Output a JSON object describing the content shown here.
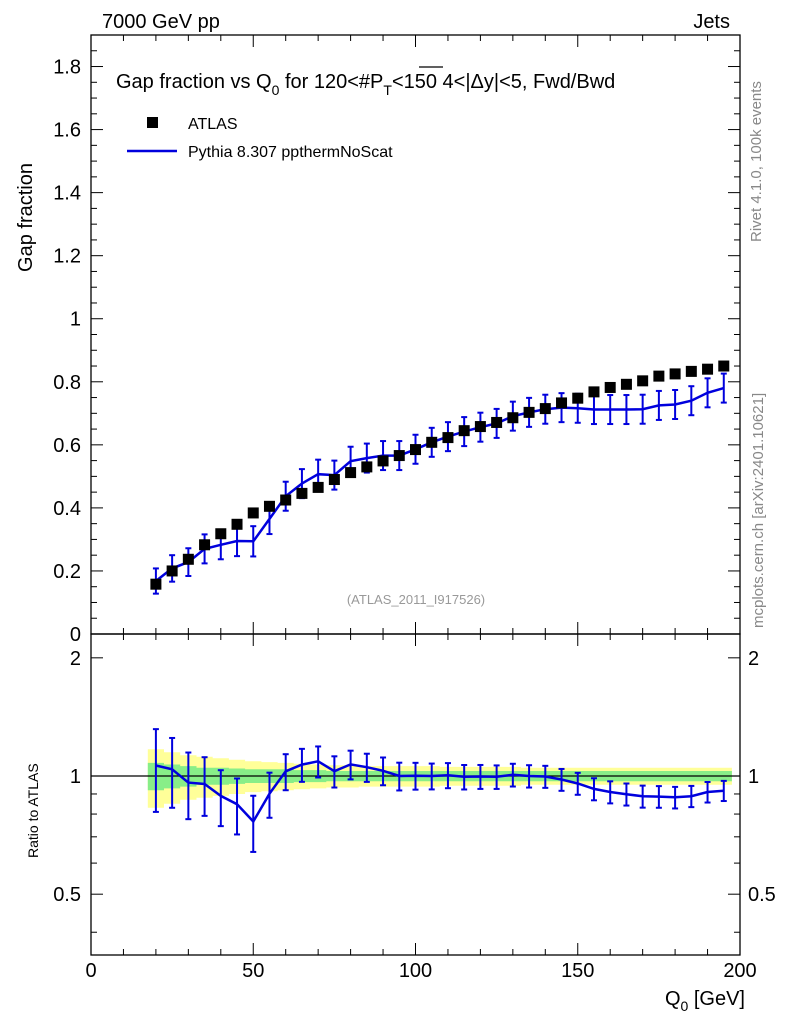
{
  "header": {
    "energy": "7000 GeV pp",
    "category": "Jets"
  },
  "side_text": {
    "rivet": "Rivet 4.1.0,  100k events",
    "mcplots": "mcplots.cern.ch [arXiv:2401.10621]"
  },
  "chart_data": {
    "type": "scatter",
    "title": "Gap fraction vs Q0 for 120<#PT<150  4<|Δy|<5, Fwd/Bwd",
    "title_parts": {
      "pre": "Gap fraction vs Q",
      "sub0": "0",
      "mid": " for 120<#",
      "p": "P",
      "subT": "T",
      "post": "<150  4<|Δy|<5, Fwd/Bwd"
    },
    "analysis_tag": "(ATLAS_2011_I917526)",
    "xlabel": "Q0 [GeV]",
    "xlabel_parts": {
      "main": "Q",
      "sub": "0",
      "unit": " [GeV]"
    },
    "ylabel": "Gap fraction",
    "ratio_ylabel": "Ratio to ATLAS",
    "xlim": [
      0,
      200
    ],
    "ylim": [
      0,
      1.9
    ],
    "ratio_ylim": [
      0.35,
      2.3
    ],
    "x_ticks": [
      "0",
      "50",
      "100",
      "150",
      "200"
    ],
    "y_ticks": [
      "0",
      "0.2",
      "0.4",
      "0.6",
      "0.8",
      "1",
      "1.2",
      "1.4",
      "1.6",
      "1.8"
    ],
    "ratio_ticks": [
      "0.5",
      "1",
      "2"
    ],
    "legend": [
      {
        "name": "ATLAS",
        "kind": "marker",
        "color": "#000000"
      },
      {
        "name": "Pythia 8.307 ppthermNoScat",
        "kind": "line",
        "color": "#0000dd"
      }
    ],
    "x": [
      20,
      25,
      30,
      35,
      40,
      45,
      50,
      55,
      60,
      65,
      70,
      75,
      80,
      85,
      90,
      95,
      100,
      105,
      110,
      115,
      120,
      125,
      130,
      135,
      140,
      145,
      150,
      155,
      160,
      165,
      170,
      175,
      180,
      185,
      190,
      195
    ],
    "series": [
      {
        "name": "ATLAS",
        "values": [
          0.158,
          0.2,
          0.237,
          0.283,
          0.318,
          0.348,
          0.384,
          0.405,
          0.425,
          0.446,
          0.465,
          0.49,
          0.512,
          0.53,
          0.549,
          0.566,
          0.585,
          0.608,
          0.623,
          0.645,
          0.658,
          0.671,
          0.686,
          0.703,
          0.715,
          0.733,
          0.748,
          0.768,
          0.782,
          0.792,
          0.803,
          0.818,
          0.825,
          0.833,
          0.84,
          0.85
        ],
        "rel_err_stat": [
          0.08,
          0.07,
          0.06,
          0.05,
          0.05,
          0.045,
          0.04,
          0.04,
          0.04,
          0.035,
          0.035,
          0.03,
          0.03,
          0.03,
          0.03,
          0.03,
          0.03,
          0.03,
          0.03,
          0.03,
          0.03,
          0.03,
          0.03,
          0.03,
          0.03,
          0.03,
          0.03,
          0.03,
          0.03,
          0.03,
          0.03,
          0.03,
          0.03,
          0.03,
          0.03,
          0.03
        ],
        "rel_err_total": [
          0.17,
          0.15,
          0.13,
          0.12,
          0.11,
          0.1,
          0.09,
          0.085,
          0.08,
          0.075,
          0.07,
          0.065,
          0.065,
          0.06,
          0.06,
          0.06,
          0.06,
          0.06,
          0.055,
          0.055,
          0.055,
          0.055,
          0.055,
          0.05,
          0.05,
          0.05,
          0.05,
          0.05,
          0.05,
          0.05,
          0.05,
          0.05,
          0.05,
          0.05,
          0.05,
          0.05
        ]
      },
      {
        "name": "Pythia 8.307 ppthermNoScat",
        "values": [
          0.168,
          0.208,
          0.228,
          0.27,
          0.283,
          0.295,
          0.294,
          0.365,
          0.437,
          0.477,
          0.507,
          0.504,
          0.548,
          0.558,
          0.566,
          0.566,
          0.586,
          0.608,
          0.626,
          0.642,
          0.656,
          0.668,
          0.691,
          0.703,
          0.713,
          0.718,
          0.716,
          0.712,
          0.712,
          0.712,
          0.713,
          0.725,
          0.728,
          0.74,
          0.765,
          0.78
        ],
        "abs_err": [
          0.04,
          0.042,
          0.044,
          0.046,
          0.046,
          0.048,
          0.048,
          0.048,
          0.046,
          0.046,
          0.046,
          0.046,
          0.046,
          0.046,
          0.046,
          0.046,
          0.046,
          0.046,
          0.046,
          0.046,
          0.046,
          0.046,
          0.046,
          0.046,
          0.046,
          0.046,
          0.046,
          0.046,
          0.046,
          0.046,
          0.046,
          0.046,
          0.046,
          0.046,
          0.046,
          0.046
        ]
      }
    ]
  },
  "colors": {
    "data": "#000000",
    "mc": "#0000dd",
    "band_total": "#ffff99",
    "band_stat": "#88ee88",
    "side_text": "#888888",
    "tag": "#999999"
  }
}
